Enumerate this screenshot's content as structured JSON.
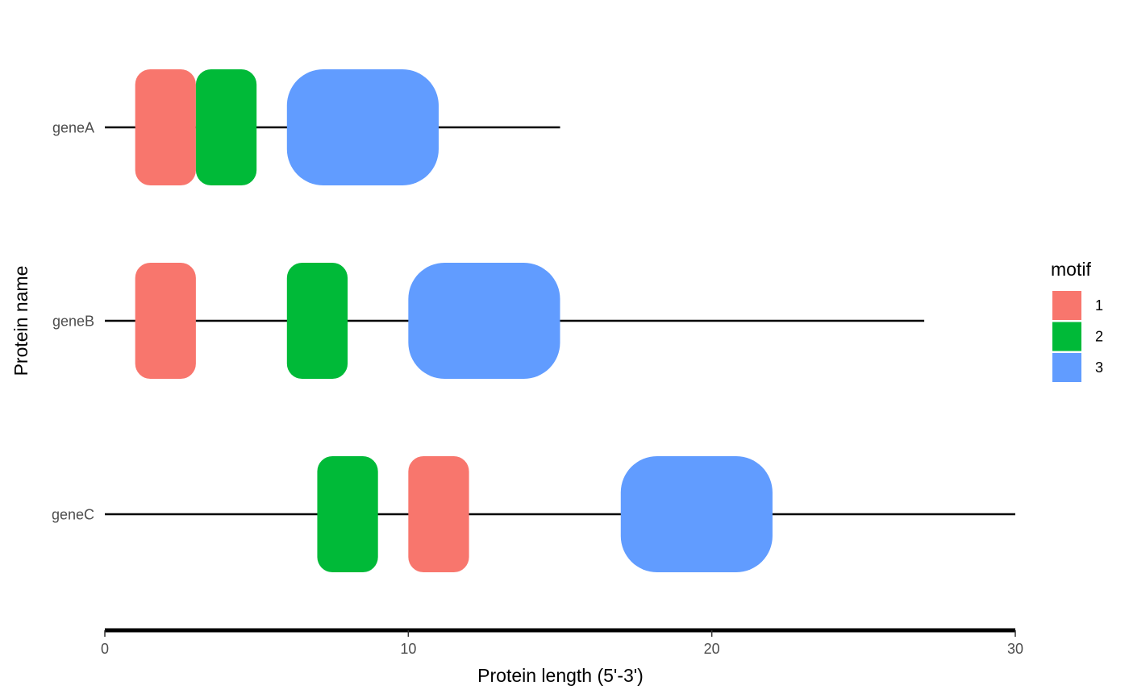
{
  "chart_data": {
    "type": "gene-structure",
    "xlabel": "Protein length (5'-3')",
    "ylabel": "Protein name",
    "xlim": [
      0,
      30
    ],
    "xticks": [
      0,
      10,
      20,
      30
    ],
    "grid": false,
    "legend": {
      "title": "motif",
      "position": "right",
      "items": [
        {
          "label": "1",
          "color": "#F8766D"
        },
        {
          "label": "2",
          "color": "#00BA38"
        },
        {
          "label": "3",
          "color": "#619CFF"
        }
      ]
    },
    "proteins": [
      {
        "name": "geneA",
        "length": 15,
        "motifs": [
          {
            "motif": "1",
            "start": 1,
            "end": 3
          },
          {
            "motif": "2",
            "start": 3,
            "end": 5
          },
          {
            "motif": "3",
            "start": 6,
            "end": 11
          }
        ]
      },
      {
        "name": "geneB",
        "length": 27,
        "motifs": [
          {
            "motif": "1",
            "start": 1,
            "end": 3
          },
          {
            "motif": "2",
            "start": 6,
            "end": 8
          },
          {
            "motif": "3",
            "start": 10,
            "end": 15
          }
        ]
      },
      {
        "name": "geneC",
        "length": 30,
        "motifs": [
          {
            "motif": "2",
            "start": 7,
            "end": 9
          },
          {
            "motif": "1",
            "start": 10,
            "end": 12
          },
          {
            "motif": "3",
            "start": 17,
            "end": 22
          }
        ]
      }
    ]
  }
}
